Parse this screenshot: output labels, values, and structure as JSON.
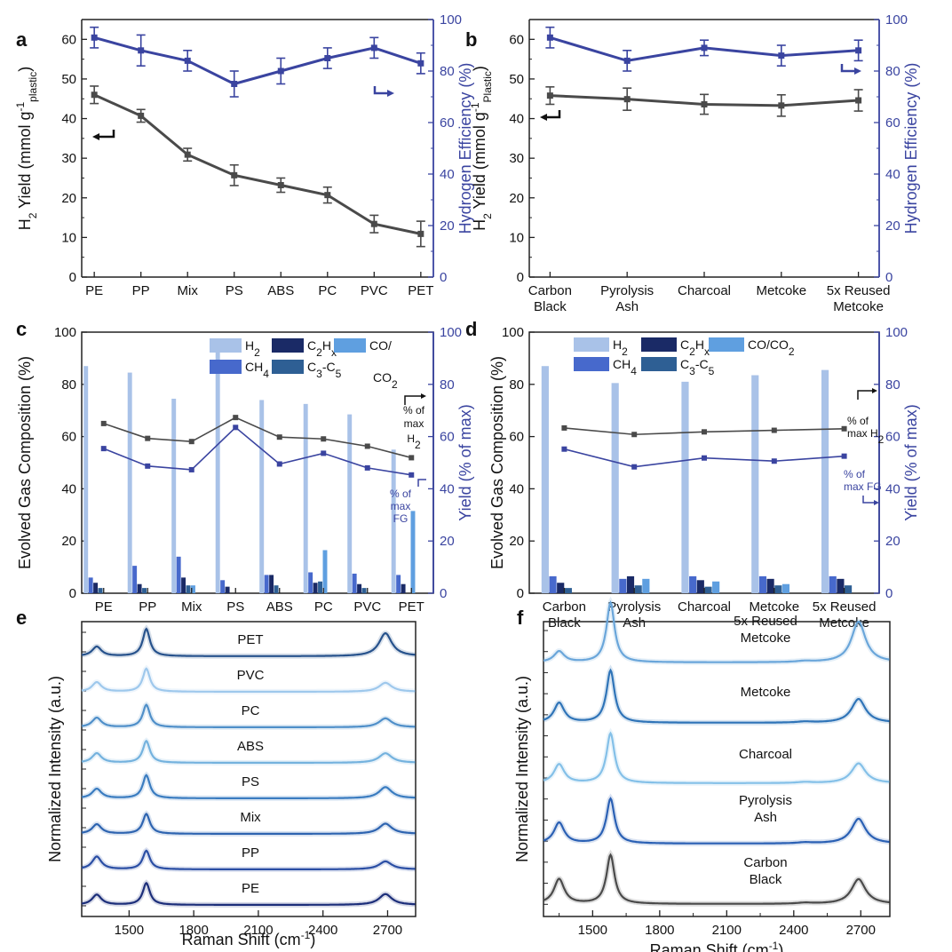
{
  "colors": {
    "gray_line": "#4a4a4a",
    "blue_line": "#3a44a0",
    "h2_bar": "#a9c2e8",
    "ch4_bar": "#4769cc",
    "c2hx_bar": "#1a2a66",
    "c3c5_bar": "#2e5f94",
    "coco2_bar": "#5f9fe0",
    "axis_black": "#222222"
  },
  "chart_data": [
    {
      "panel": "a",
      "type": "line",
      "categories": [
        "PE",
        "PP",
        "Mix",
        "PS",
        "ABS",
        "PC",
        "PVC",
        "PET"
      ],
      "ylabel_left": "H2 Yield (mmol g-1 plastic)",
      "ylabel_right": "Hydrogen Efficiency (%)",
      "ylim_left": [
        0,
        65
      ],
      "ylim_right": [
        0,
        100
      ],
      "yticks_left": [
        "0",
        "10",
        "20",
        "30",
        "40",
        "50",
        "60"
      ],
      "yticks_right": [
        "0",
        "20",
        "40",
        "60",
        "80",
        "100"
      ],
      "series": [
        {
          "name": "H2 Yield",
          "axis": "left",
          "values": [
            46.0,
            40.7,
            30.9,
            25.7,
            23.2,
            20.7,
            13.4,
            10.9
          ],
          "errors": [
            2.2,
            1.6,
            1.6,
            2.6,
            1.8,
            2.0,
            2.2,
            3.2
          ]
        },
        {
          "name": "Hydrogen Efficiency",
          "axis": "right",
          "values": [
            93,
            88,
            84,
            75,
            80,
            85,
            89,
            83
          ],
          "errors": [
            4,
            6,
            4,
            5,
            5,
            4,
            4,
            4
          ]
        }
      ]
    },
    {
      "panel": "b",
      "type": "line",
      "categories": [
        "Carbon Black",
        "Pyrolysis Ash",
        "Charcoal",
        "Metcoke",
        "5x Reused Metcoke"
      ],
      "ylabel_left": "H2 Yield (mmol g-1 Plastic)",
      "ylabel_right": "Hydrogen Efficiency (%)",
      "ylim_left": [
        0,
        65
      ],
      "ylim_right": [
        0,
        100
      ],
      "yticks_left": [
        "0",
        "10",
        "20",
        "30",
        "40",
        "50",
        "60"
      ],
      "yticks_right": [
        "0",
        "20",
        "40",
        "60",
        "80",
        "100"
      ],
      "series": [
        {
          "name": "H2 Yield",
          "axis": "left",
          "values": [
            45.8,
            44.9,
            43.6,
            43.3,
            44.6
          ],
          "errors": [
            2.2,
            2.8,
            2.5,
            2.7,
            2.7
          ]
        },
        {
          "name": "Hydrogen Efficiency",
          "axis": "right",
          "values": [
            93,
            84,
            89,
            86,
            88
          ],
          "errors": [
            4,
            4,
            3,
            4,
            4
          ]
        }
      ]
    },
    {
      "panel": "c",
      "type": "bar",
      "categories": [
        "PE",
        "PP",
        "Mix",
        "PS",
        "ABS",
        "PC",
        "PVC",
        "PET"
      ],
      "ylabel_left": "Evolved Gas Composition (%)",
      "ylabel_right": "Yield (% of max)",
      "ylim": [
        0,
        100
      ],
      "yticks": [
        "0",
        "20",
        "40",
        "60",
        "80",
        "100"
      ],
      "bar_series": [
        {
          "name": "H2",
          "values": [
            87,
            84.5,
            74.5,
            94,
            74,
            72.5,
            68.5,
            55
          ]
        },
        {
          "name": "CH4",
          "values": [
            6,
            10.5,
            14,
            5,
            7,
            8,
            7.5,
            7
          ]
        },
        {
          "name": "C2Hx",
          "values": [
            4,
            3.5,
            6,
            2.5,
            7,
            4,
            3.5,
            3.5
          ]
        },
        {
          "name": "C3-C5",
          "values": [
            2,
            2,
            3,
            0,
            3,
            4.5,
            2,
            0
          ]
        },
        {
          "name": "CO/CO2",
          "values": [
            0,
            0,
            3,
            0,
            0,
            16.5,
            0,
            31.5
          ]
        }
      ],
      "line_series": [
        {
          "name": "% of max H2",
          "values": [
            65,
            59.3,
            58.1,
            67.3,
            59.8,
            59.1,
            56.3,
            51.9
          ]
        },
        {
          "name": "% of max FG",
          "values": [
            55.4,
            48.7,
            47.3,
            63.5,
            49.5,
            53.6,
            48,
            45.3
          ]
        }
      ],
      "legend": [
        "H2",
        "C2Hx",
        "CO/",
        "CO2",
        "CH4",
        "C3-C5"
      ],
      "annotations": [
        {
          "lines": [
            "% of",
            "max",
            "H2"
          ]
        },
        {
          "lines": [
            "% of",
            "max",
            "FG"
          ]
        }
      ]
    },
    {
      "panel": "d",
      "type": "bar",
      "categories": [
        "Carbon Black",
        "Pyrolysis Ash",
        "Charcoal",
        "Metcoke",
        "5x Reused Metcoke"
      ],
      "ylabel_left": "Evolved Gas Composition (%)",
      "ylabel_right": "Yield (% of max)",
      "ylim": [
        0,
        100
      ],
      "yticks": [
        "0",
        "20",
        "40",
        "60",
        "80",
        "100"
      ],
      "bar_series": [
        {
          "name": "H2",
          "values": [
            87,
            80.5,
            81,
            83.5,
            85.5
          ]
        },
        {
          "name": "CH4",
          "values": [
            6.5,
            5.5,
            6.5,
            6.5,
            6.5
          ]
        },
        {
          "name": "C2Hx",
          "values": [
            4,
            6.5,
            5,
            5.5,
            5.5
          ]
        },
        {
          "name": "C3-C5",
          "values": [
            2,
            3,
            2.5,
            3,
            3
          ]
        },
        {
          "name": "CO/CO2",
          "values": [
            0,
            5.5,
            4.5,
            3.5,
            0
          ]
        }
      ],
      "line_series": [
        {
          "name": "% of max H2",
          "values": [
            63.3,
            60.8,
            61.8,
            62.4,
            63
          ]
        },
        {
          "name": "% of max FG",
          "values": [
            55.2,
            48.4,
            51.8,
            50.6,
            52.5
          ]
        }
      ],
      "legend": [
        "H2",
        "C2Hx",
        "CO/CO2",
        "CH4",
        "C3-C5"
      ],
      "annotations": [
        {
          "lines": [
            "% of",
            "max H2"
          ]
        },
        {
          "lines": [
            "% of",
            "max FG"
          ]
        }
      ]
    },
    {
      "panel": "e",
      "type": "line",
      "xlabel": "Raman Shift (cm-1)",
      "ylabel": "Normalized Intensity (a.u.)",
      "xlim": [
        1280,
        2830
      ],
      "xticks": [
        1500,
        1800,
        2100,
        2400,
        2700
      ],
      "xtick_labels": [
        "1500",
        "1800",
        "2100",
        "2400",
        "2700"
      ],
      "spectra": [
        {
          "name": "PET",
          "color": "#27528c",
          "D": 0.3,
          "G": 0.85,
          "twoD": 0.72,
          "offset": 7
        },
        {
          "name": "PVC",
          "color": "#9ec8ec",
          "D": 0.3,
          "G": 0.72,
          "twoD": 0.28,
          "offset": 6
        },
        {
          "name": "PC",
          "color": "#4f8fc9",
          "D": 0.3,
          "G": 0.7,
          "twoD": 0.28,
          "offset": 5
        },
        {
          "name": "ABS",
          "color": "#74b2de",
          "D": 0.3,
          "G": 0.68,
          "twoD": 0.3,
          "offset": 4
        },
        {
          "name": "PS",
          "color": "#3a7cc0",
          "D": 0.3,
          "G": 0.72,
          "twoD": 0.35,
          "offset": 3
        },
        {
          "name": "Mix",
          "color": "#2e64b0",
          "D": 0.3,
          "G": 0.62,
          "twoD": 0.32,
          "offset": 2
        },
        {
          "name": "PP",
          "color": "#2a4ea4",
          "D": 0.4,
          "G": 0.58,
          "twoD": 0.25,
          "offset": 1
        },
        {
          "name": "PE",
          "color": "#1c2e7a",
          "D": 0.32,
          "G": 0.68,
          "twoD": 0.34,
          "offset": 0
        }
      ]
    },
    {
      "panel": "f",
      "type": "line",
      "xlabel": "Raman Shift (cm-1)",
      "ylabel": "Normalized Intensity (a.u.)",
      "xlim": [
        1280,
        2830
      ],
      "xticks": [
        1500,
        1800,
        2100,
        2400,
        2700
      ],
      "xtick_labels": [
        "1500",
        "1800",
        "2100",
        "2400",
        "2700"
      ],
      "spectra": [
        {
          "name": "5x Reused Metcoke",
          "color": "#6aa6da",
          "D": 0.22,
          "G": 1.2,
          "twoD": 0.82,
          "offset": 4
        },
        {
          "name": "Metcoke",
          "color": "#2f74b8",
          "D": 0.4,
          "G": 1.05,
          "twoD": 0.48,
          "offset": 3
        },
        {
          "name": "Charcoal",
          "color": "#84c0e8",
          "D": 0.38,
          "G": 1.0,
          "twoD": 0.4,
          "offset": 2
        },
        {
          "name": "Pyrolysis Ash",
          "color": "#2a60b4",
          "D": 0.42,
          "G": 0.9,
          "twoD": 0.5,
          "offset": 1
        },
        {
          "name": "Carbon Black",
          "color": "#4a4a4a",
          "D": 0.5,
          "G": 0.98,
          "twoD": 0.5,
          "offset": 0
        }
      ]
    }
  ],
  "panel_labels": [
    "a",
    "b",
    "c",
    "d",
    "e",
    "f"
  ]
}
